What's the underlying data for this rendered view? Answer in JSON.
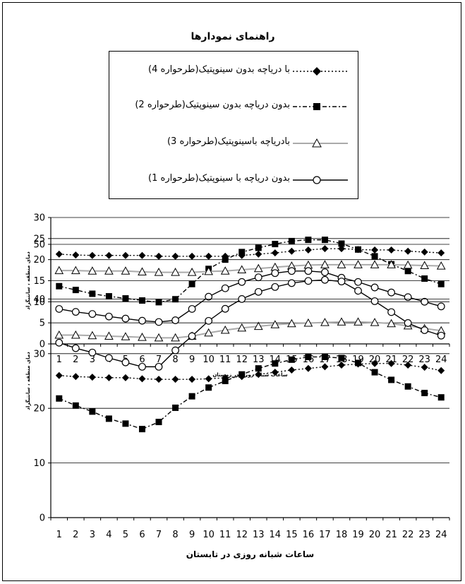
{
  "legend": {
    "title": "راهنمای نمودارها",
    "items": [
      {
        "label": "با دریاچه بدون سینوپتیک(طرحواره 4)",
        "style": "dotted-diamond"
      },
      {
        "label": "بدون دریاچه بدون سینوپتیک(طرحواره 2)",
        "style": "dashdot-square"
      },
      {
        "label": "بادریاچه باسینوپتیک(طرحواره 3)",
        "style": "gray-triangle"
      },
      {
        "label": "بدون دریاچه با سینوپتیک(طرحواره 1)",
        "style": "solid-circle"
      }
    ]
  },
  "chart_data": [
    {
      "type": "line",
      "title": "",
      "xlabel": "ساعات شبانه روزی در زمستان",
      "ylabel": "دمای منطقه ، سانتیگراد",
      "x": [
        1,
        2,
        3,
        4,
        5,
        6,
        7,
        8,
        9,
        10,
        11,
        12,
        13,
        14,
        15,
        16,
        17,
        18,
        19,
        20,
        21,
        22,
        23,
        24
      ],
      "ylim": [
        0,
        30
      ],
      "yticks": [
        0,
        5,
        10,
        15,
        20,
        25,
        30
      ],
      "grid": "horizontal",
      "series": [
        {
          "name": "با دریاچه بدون سینوپتیک(طرحواره 4)",
          "marker": "diamond",
          "values": [
            21.3,
            21.1,
            21.0,
            21.0,
            21.0,
            21.0,
            20.8,
            20.8,
            20.8,
            20.8,
            20.8,
            21.0,
            21.3,
            21.6,
            22.0,
            22.3,
            22.6,
            22.6,
            22.4,
            22.3,
            22.3,
            22.0,
            21.8,
            21.6
          ]
        },
        {
          "name": "بدون دریاچه بدون سینوپتیک(طرحواره 2)",
          "marker": "square",
          "values": [
            13.7,
            12.8,
            11.9,
            11.3,
            10.8,
            10.3,
            9.9,
            10.6,
            14.2,
            17.8,
            20.0,
            21.8,
            22.8,
            23.7,
            24.4,
            24.7,
            24.7,
            23.8,
            22.4,
            20.8,
            18.9,
            17.3,
            15.5,
            14.2
          ]
        },
        {
          "name": "بادریاچه باسینوپتیک(طرحواره 3)",
          "marker": "triangle",
          "values": [
            17.4,
            17.4,
            17.3,
            17.3,
            17.3,
            17.1,
            17.0,
            17.0,
            17.0,
            17.2,
            17.3,
            17.6,
            17.9,
            18.2,
            18.5,
            18.7,
            18.8,
            18.8,
            18.8,
            18.8,
            18.8,
            18.7,
            18.6,
            18.5
          ]
        },
        {
          "name": "بدون دریاچه با سینوپتیک(طرحواره 1)",
          "marker": "circle",
          "values": [
            8.3,
            7.6,
            7.1,
            6.5,
            6.0,
            5.5,
            5.2,
            5.6,
            8.3,
            11.2,
            13.2,
            14.7,
            15.8,
            16.8,
            17.3,
            17.3,
            17.0,
            15.7,
            14.7,
            13.4,
            12.2,
            11.1,
            10.0,
            8.9
          ]
        }
      ]
    },
    {
      "type": "line",
      "title": "",
      "xlabel": "ساعات شبانه روزی در تابستان",
      "ylabel": "دمای منطقه ، سانتیگراد",
      "x": [
        1,
        2,
        3,
        4,
        5,
        6,
        7,
        8,
        9,
        10,
        11,
        12,
        13,
        14,
        15,
        16,
        17,
        18,
        19,
        20,
        21,
        22,
        23,
        24
      ],
      "ylim": [
        0,
        50
      ],
      "yticks": [
        0,
        10,
        20,
        30,
        40,
        50
      ],
      "grid": "horizontal",
      "series": [
        {
          "name": "با دریاچه بدون سینوپتیک(طرحواره 4)",
          "marker": "diamond",
          "values": [
            26.0,
            25.8,
            25.7,
            25.6,
            25.6,
            25.4,
            25.3,
            25.3,
            25.3,
            25.4,
            25.6,
            25.8,
            26.2,
            26.6,
            27.0,
            27.3,
            27.6,
            27.9,
            28.1,
            28.2,
            28.2,
            27.9,
            27.5,
            26.9
          ]
        },
        {
          "name": "بدون دریاچه بدون سینوپتیک(طرحواره 2)",
          "marker": "square",
          "values": [
            21.8,
            20.5,
            19.4,
            18.1,
            17.2,
            16.2,
            17.5,
            20.1,
            22.2,
            23.8,
            25.0,
            26.2,
            27.3,
            28.2,
            28.9,
            29.4,
            29.4,
            29.2,
            28.3,
            26.6,
            25.2,
            24.0,
            22.8,
            22.0
          ]
        },
        {
          "name": "بادریاچه باسینوپتیک(طرحواره 3)",
          "marker": "triangle",
          "values": [
            33.4,
            33.4,
            33.3,
            33.2,
            33.1,
            33.0,
            32.9,
            32.9,
            33.2,
            33.8,
            34.3,
            34.7,
            35.0,
            35.3,
            35.5,
            35.6,
            35.7,
            35.8,
            35.8,
            35.7,
            35.5,
            35.1,
            34.6,
            34.2
          ]
        },
        {
          "name": "بدون دریاچه با سینوپتیک(طرحواره 1)",
          "marker": "circle",
          "values": [
            32.0,
            31.0,
            30.2,
            29.2,
            28.4,
            27.6,
            27.6,
            30.6,
            33.2,
            36.0,
            38.2,
            40.0,
            41.3,
            42.2,
            42.9,
            43.3,
            43.5,
            43.2,
            41.5,
            39.6,
            37.6,
            35.6,
            34.3,
            33.3
          ]
        }
      ]
    }
  ]
}
